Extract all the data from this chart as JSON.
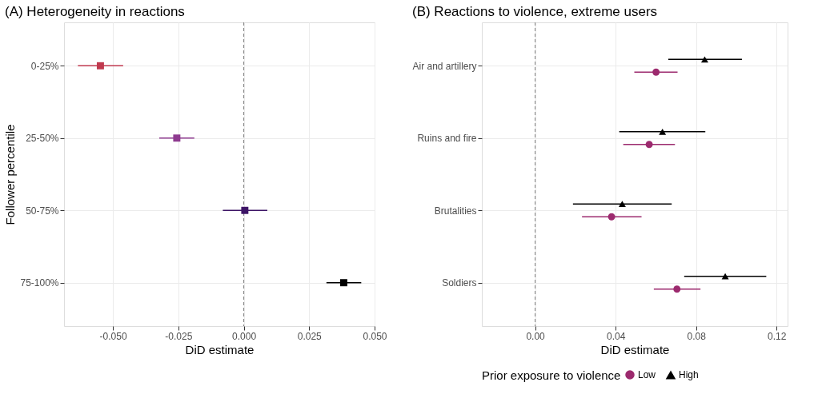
{
  "chart_data": [
    {
      "type": "scatter",
      "title": "(A) Heterogeneity in reactions",
      "xlabel": "DiD estimate",
      "ylabel": "Follower percentile",
      "categories": [
        "0-25%",
        "25-50%",
        "50-75%",
        "75-100%"
      ],
      "values": [
        -0.0548,
        -0.0256,
        0.0004,
        0.0382
      ],
      "errors": [
        [
          -0.0634,
          -0.0461
        ],
        [
          -0.0323,
          -0.0189
        ],
        [
          -0.008,
          0.009
        ],
        [
          0.0316,
          0.0449
        ]
      ],
      "colors": [
        "#c0394e",
        "#8e3a8f",
        "#3d1466",
        "#000000"
      ],
      "marker": "square",
      "orientation": "horizontal",
      "xlim": [
        -0.0687,
        0.05
      ],
      "xticks": [
        {
          "value": -0.05,
          "label": "-0.050"
        },
        {
          "value": -0.025,
          "label": "-0.025"
        },
        {
          "value": 0,
          "label": "0.000"
        },
        {
          "value": 0.025,
          "label": "0.025"
        },
        {
          "value": 0.05,
          "label": "0.050"
        }
      ],
      "ref_lines": [
        {
          "axis": "x",
          "value": 0,
          "color": "#808080",
          "line_style": "dashed"
        }
      ],
      "grid": true
    },
    {
      "type": "scatter",
      "title": "(B) Reactions to violence, extreme users",
      "xlabel": "DiD estimate",
      "legend_title": "Prior exposure to violence",
      "categories": [
        "Air and artillery",
        "Ruins and fire",
        "Brutalities",
        "Soldiers"
      ],
      "series": [
        {
          "name": "Low",
          "color": "#9c2a6e",
          "marker": "circle",
          "values": [
            0.0601,
            0.0567,
            0.038,
            0.0705
          ],
          "errors": [
            [
              0.0493,
              0.0708
            ],
            [
              0.0438,
              0.0695
            ],
            [
              0.0233,
              0.0529
            ],
            [
              0.059,
              0.0822
            ]
          ]
        },
        {
          "name": "High",
          "color": "#000000",
          "marker": "triangle",
          "values": [
            0.0843,
            0.0633,
            0.0433,
            0.0945
          ],
          "errors": [
            [
              0.0662,
              0.1028
            ],
            [
              0.0418,
              0.0846
            ],
            [
              0.0188,
              0.0679
            ],
            [
              0.0741,
              0.1149
            ]
          ]
        }
      ],
      "orientation": "horizontal",
      "xlim": [
        -0.0265,
        0.1255
      ],
      "xticks": [
        {
          "value": 0,
          "label": "0.00"
        },
        {
          "value": 0.04,
          "label": "0.04"
        },
        {
          "value": 0.08,
          "label": "0.08"
        },
        {
          "value": 0.12,
          "label": "0.12"
        }
      ],
      "ref_lines": [
        {
          "axis": "x",
          "value": 0,
          "color": "#808080",
          "line_style": "dashed"
        }
      ],
      "grid": true,
      "legend": "bottom"
    }
  ]
}
